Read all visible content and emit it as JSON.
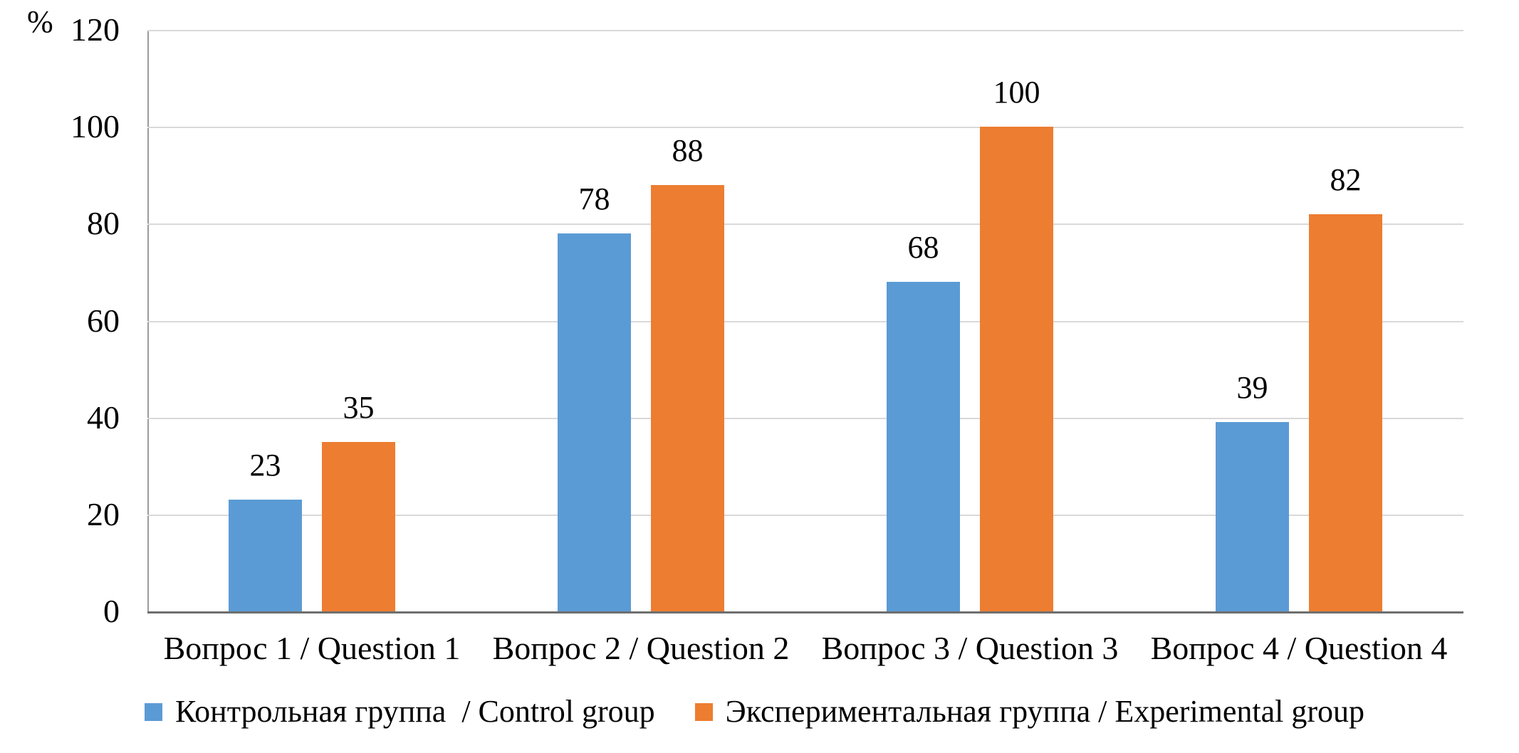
{
  "chart_data": {
    "type": "bar",
    "title": "",
    "percent_axis_label": "%",
    "categories": [
      "Вопрос 1 / Question 1",
      "Вопрос 2 / Question 2",
      "Вопрос 3 / Question 3",
      "Вопрос 4 / Question 4"
    ],
    "series": [
      {
        "id": "control",
        "name": "Контрольная группа  / Control group",
        "color": "#5B9BD5",
        "values": [
          23,
          78,
          68,
          39
        ]
      },
      {
        "id": "experimental",
        "name": "Экспериментальная группа / Experimental group",
        "color": "#ED7D31",
        "values": [
          35,
          88,
          100,
          82
        ]
      }
    ],
    "ylim": [
      0,
      120
    ],
    "yticks": [
      0,
      20,
      40,
      60,
      80,
      100,
      120
    ],
    "grid": true,
    "gridline_color": "#D9D9D9",
    "axis_line_color": "#6E6E6E",
    "legend_position": "bottom",
    "data_labels": true
  }
}
